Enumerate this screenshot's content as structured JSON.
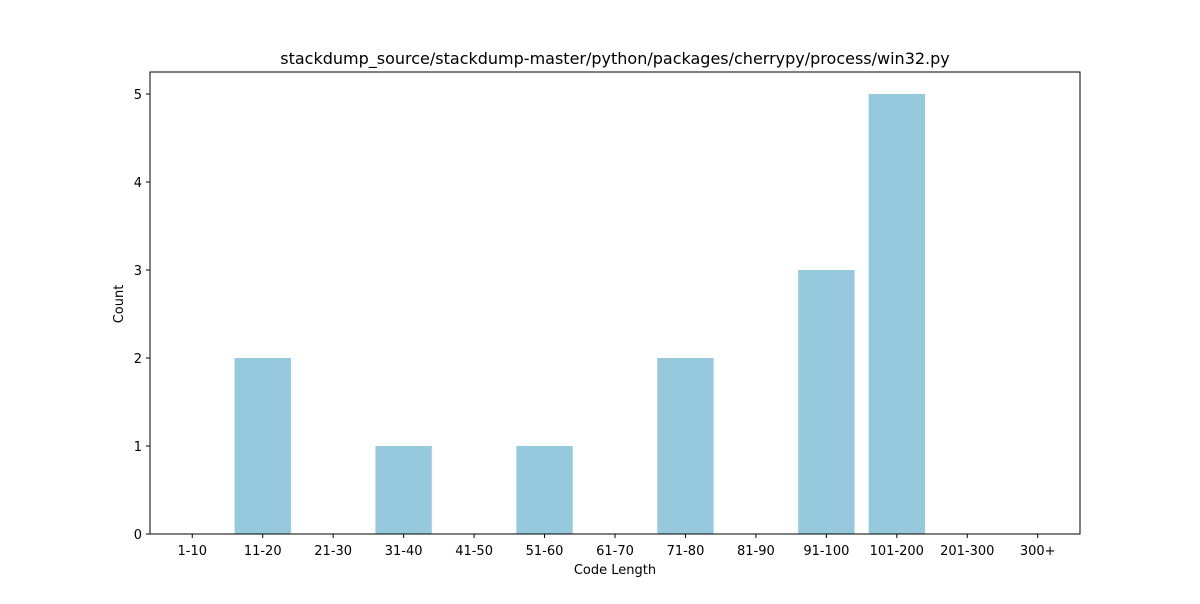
{
  "chart_data": {
    "type": "bar",
    "title": "stackdump_source/stackdump-master/python/packages/cherrypy/process/win32.py",
    "xlabel": "Code Length",
    "ylabel": "Count",
    "categories": [
      "1-10",
      "11-20",
      "21-30",
      "31-40",
      "41-50",
      "51-60",
      "61-70",
      "71-80",
      "81-90",
      "91-100",
      "101-200",
      "201-300",
      "300+"
    ],
    "values": [
      0,
      2,
      0,
      1,
      0,
      1,
      0,
      2,
      0,
      3,
      5,
      0,
      0
    ],
    "yticks": [
      0,
      1,
      2,
      3,
      4,
      5
    ],
    "ylim": [
      0,
      5.25
    ],
    "bar_color": "#96c9dd",
    "grid": false,
    "legend": "none"
  }
}
